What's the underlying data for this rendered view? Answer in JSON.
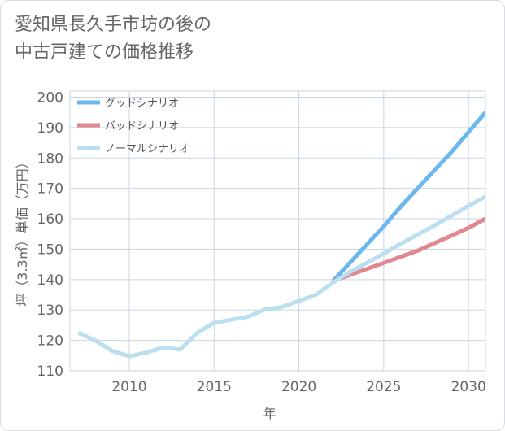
{
  "title": {
    "line1": "愛知県長久手市坊の後の",
    "line2": "中古戸建ての価格推移"
  },
  "chart_data": {
    "type": "line",
    "title": "愛知県長久手市坊の後の中古戸建ての価格推移",
    "xlabel": "年",
    "ylabel": "坪（3.3㎡）単価（万円）",
    "xlim": [
      2006.5,
      2031
    ],
    "ylim": [
      110,
      202
    ],
    "xticks": [
      2010,
      2015,
      2020,
      2025,
      2030
    ],
    "yticks": [
      110,
      120,
      130,
      140,
      150,
      160,
      170,
      180,
      190,
      200
    ],
    "grid": true,
    "legend_position": "top-left",
    "series": [
      {
        "name": "グッドシナリオ",
        "color": "#6cb8ee",
        "x": [
          2022,
          2023,
          2024,
          2025,
          2026,
          2027,
          2028,
          2029,
          2030,
          2031
        ],
        "y": [
          139.5,
          145.5,
          151.5,
          157.5,
          164,
          170,
          176,
          182,
          188.5,
          195
        ]
      },
      {
        "name": "バッドシナリオ",
        "color": "#e0878f",
        "x": [
          2022,
          2023,
          2024,
          2025,
          2026,
          2027,
          2028,
          2029,
          2030,
          2031
        ],
        "y": [
          139.5,
          141.5,
          143.5,
          145.5,
          147.5,
          149.5,
          152,
          154.5,
          157,
          160
        ]
      },
      {
        "name": "ノーマルシナリオ",
        "color": "#bcdff0",
        "x": [
          2007,
          2008,
          2009,
          2010,
          2011,
          2012,
          2013,
          2014,
          2015,
          2016,
          2017,
          2018,
          2019,
          2020,
          2021,
          2022,
          2023,
          2024,
          2025,
          2026,
          2027,
          2028,
          2029,
          2030,
          2031
        ],
        "y": [
          122.5,
          120,
          116.5,
          114.8,
          116,
          117.7,
          117,
          122.5,
          125.8,
          126.8,
          127.8,
          130.2,
          131,
          133,
          135,
          139,
          142.5,
          145.5,
          148.5,
          151.8,
          154.8,
          157.8,
          161,
          164.2,
          167.3
        ]
      }
    ]
  }
}
